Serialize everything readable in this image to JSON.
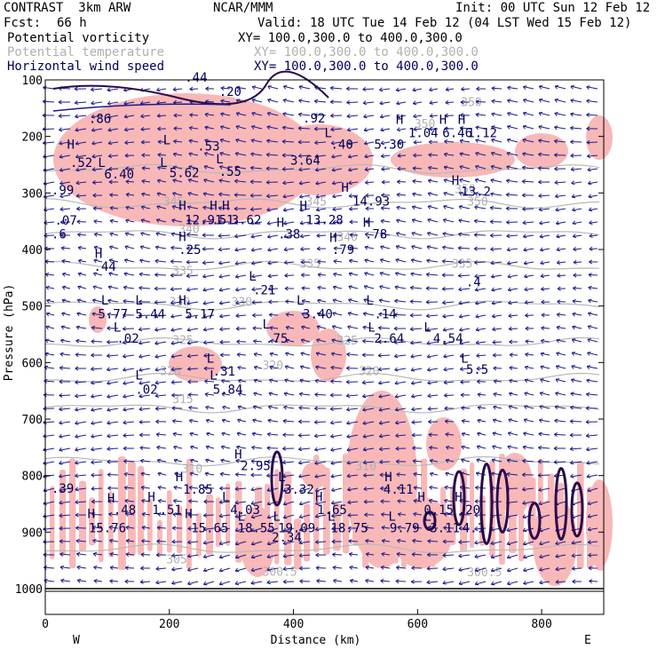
{
  "header": {
    "title_left": "CONTRAST  3km ARW",
    "center_label": "NCAR/MMM",
    "init": "Init: 00 UTC Sun 12 Feb 12",
    "fcst_label": "Fcst:",
    "fcst_value": "66 h",
    "valid": "Valid: 18 UTC Tue 14 Feb 12 (04 LST Wed 15 Feb 12)",
    "fields": [
      {
        "name": "Potential vorticity",
        "xy": "XY= 100.0,300.0 to 400.0,300.0",
        "color": "#000000"
      },
      {
        "name": "Potential temperature",
        "xy": "XY= 100.0,300.0 to 400.0,300.0",
        "color": "#b0b0b0"
      },
      {
        "name": "Horizontal wind speed",
        "xy": "XY= 100.0,300.0 to 400.0,300.0",
        "color": "#00005a"
      }
    ]
  },
  "chart_data": {
    "type": "cross-section",
    "xlabel": "Distance (km)",
    "ylabel": "Pressure (hPa)",
    "xlim": [
      0,
      900
    ],
    "ylim": [
      1000,
      100
    ],
    "x_ticks": [
      0,
      200,
      400,
      600,
      800
    ],
    "y_ticks": [
      100,
      200,
      300,
      400,
      500,
      600,
      700,
      800,
      900,
      1000
    ],
    "x_end_labels": {
      "left": "W",
      "right": "E"
    },
    "theta_isentropes": [
      {
        "label": "315",
        "pressure": 680
      },
      {
        "label": "320",
        "pressure": 628
      },
      {
        "label": "325",
        "pressure": 565
      },
      {
        "label": "330",
        "pressure": 498
      },
      {
        "label": "335",
        "pressure": 430
      },
      {
        "label": "340",
        "pressure": 372
      },
      {
        "label": "345",
        "pressure": 318
      },
      {
        "label": "350",
        "pressure": 258
      },
      {
        "label": "310",
        "pressure": 775
      },
      {
        "label": "305",
        "pressure": 930
      }
    ],
    "theta_labels": [
      {
        "text": "315",
        "x": 205,
        "p": 672
      },
      {
        "text": "320",
        "x": 185,
        "p": 622
      },
      {
        "text": "320",
        "x": 350,
        "p": 612
      },
      {
        "text": "320",
        "x": 505,
        "p": 622
      },
      {
        "text": "325",
        "x": 205,
        "p": 567
      },
      {
        "text": "325",
        "x": 470,
        "p": 568
      },
      {
        "text": "330",
        "x": 200,
        "p": 500
      },
      {
        "text": "330",
        "x": 300,
        "p": 500
      },
      {
        "text": "335",
        "x": 205,
        "p": 445
      },
      {
        "text": "335",
        "x": 410,
        "p": 432
      },
      {
        "text": "335",
        "x": 655,
        "p": 432
      },
      {
        "text": "340",
        "x": 215,
        "p": 371
      },
      {
        "text": "340",
        "x": 470,
        "p": 385
      },
      {
        "text": "345",
        "x": 420,
        "p": 322
      },
      {
        "text": "345",
        "x": 190,
        "p": 322
      },
      {
        "text": "350",
        "x": 680,
        "p": 322
      },
      {
        "text": "350",
        "x": 660,
        "p": 300
      },
      {
        "text": "350",
        "x": 595,
        "p": 185
      },
      {
        "text": "350",
        "x": 670,
        "p": 146
      },
      {
        "text": "310",
        "x": 220,
        "p": 795
      },
      {
        "text": "310",
        "x": 500,
        "p": 790
      },
      {
        "text": "305",
        "x": 195,
        "p": 955
      },
      {
        "text": "300.5",
        "x": 350,
        "p": 977
      },
      {
        "text": "300.5",
        "x": 680,
        "p": 978
      }
    ],
    "hl_labels": [
      {
        "t": "H",
        "x": 35,
        "p": 222
      },
      {
        "t": ".52",
        "x": 40,
        "p": 254
      },
      {
        "t": "L",
        "x": 85,
        "p": 254
      },
      {
        "t": "6.40",
        "x": 95,
        "p": 274
      },
      {
        "t": "L",
        "x": 190,
        "p": 214
      },
      {
        "t": ".53",
        "x": 245,
        "p": 225
      },
      {
        "t": "L",
        "x": 185,
        "p": 254
      },
      {
        "t": "5.62",
        "x": 200,
        "p": 272
      },
      {
        "t": "L",
        "x": 275,
        "p": 248
      },
      {
        "t": ".55",
        "x": 280,
        "p": 270
      },
      {
        "t": "3.64",
        "x": 395,
        "p": 250
      },
      {
        "t": ".92",
        "x": 415,
        "p": 175
      },
      {
        "t": ".86",
        "x": 70,
        "p": 176
      },
      {
        "t": ".20",
        "x": 280,
        "p": 128
      },
      {
        "t": ".44",
        "x": 225,
        "p": 103
      },
      {
        "t": "L",
        "x": 450,
        "p": 201
      },
      {
        "t": ".40",
        "x": 460,
        "p": 222
      },
      {
        "t": "5.30",
        "x": 530,
        "p": 222
      },
      {
        "t": "H",
        "x": 565,
        "p": 178
      },
      {
        "t": "1.04",
        "x": 585,
        "p": 201
      },
      {
        "t": "H",
        "x": 635,
        "p": 178
      },
      {
        "t": "6.46",
        "x": 640,
        "p": 201
      },
      {
        "t": "H",
        "x": 665,
        "p": 178
      },
      {
        "t": "1.12",
        "x": 680,
        "p": 201
      },
      {
        "t": "H",
        "x": 655,
        "p": 285
      },
      {
        "t": "13.2",
        "x": 670,
        "p": 305
      },
      {
        "t": ".99",
        "x": 10,
        "p": 303
      },
      {
        "t": "H",
        "x": 477,
        "p": 298
      },
      {
        "t": "14.93",
        "x": 495,
        "p": 322
      },
      {
        "t": ".07",
        "x": 15,
        "p": 356
      },
      {
        "t": "H",
        "x": 215,
        "p": 330
      },
      {
        "t": "12.91",
        "x": 225,
        "p": 355
      },
      {
        "t": "H",
        "x": 265,
        "p": 330
      },
      {
        "t": ".51",
        "x": 268,
        "p": 355
      },
      {
        "t": "H",
        "x": 285,
        "p": 330
      },
      {
        "t": "3.62",
        "x": 300,
        "p": 355
      },
      {
        "t": "H",
        "x": 410,
        "p": 330
      },
      {
        "t": "13.28",
        "x": 420,
        "p": 355
      },
      {
        "t": "H",
        "x": 373,
        "p": 360
      },
      {
        "t": ".38",
        "x": 375,
        "p": 380
      },
      {
        "t": "H",
        "x": 512,
        "p": 360
      },
      {
        "t": ".78",
        "x": 515,
        "p": 380
      },
      {
        "t": ".6",
        "x": 10,
        "p": 380
      },
      {
        "t": "H",
        "x": 458,
        "p": 387
      },
      {
        "t": ".79",
        "x": 462,
        "p": 408
      },
      {
        "t": "H",
        "x": 215,
        "p": 385
      },
      {
        "t": ".25",
        "x": 215,
        "p": 408
      },
      {
        "t": "H",
        "x": 80,
        "p": 415
      },
      {
        "t": ".44",
        "x": 78,
        "p": 438
      },
      {
        "t": "L",
        "x": 328,
        "p": 455
      },
      {
        "t": ".21",
        "x": 335,
        "p": 479
      },
      {
        "t": "H",
        "x": 215,
        "p": 497
      },
      {
        "t": "5.17",
        "x": 225,
        "p": 522
      },
      {
        "t": "L",
        "x": 90,
        "p": 497
      },
      {
        "t": "5.77",
        "x": 85,
        "p": 522
      },
      {
        "t": "L",
        "x": 145,
        "p": 497
      },
      {
        "t": "5.44",
        "x": 145,
        "p": 522
      },
      {
        "t": "L",
        "x": 405,
        "p": 497
      },
      {
        "t": "3.40",
        "x": 415,
        "p": 522
      },
      {
        "t": "L",
        "x": 517,
        "p": 497
      },
      {
        "t": ".14",
        "x": 530,
        "p": 522
      },
      {
        "t": "L",
        "x": 350,
        "p": 540
      },
      {
        "t": ".75",
        "x": 355,
        "p": 565
      },
      {
        "t": "L",
        "x": 110,
        "p": 545
      },
      {
        "t": ".02",
        "x": 115,
        "p": 565
      },
      {
        "t": "L",
        "x": 520,
        "p": 545
      },
      {
        "t": "2.64",
        "x": 530,
        "p": 565
      },
      {
        "t": "L",
        "x": 610,
        "p": 545
      },
      {
        "t": "4.54",
        "x": 625,
        "p": 565
      },
      {
        "t": "L",
        "x": 260,
        "p": 600
      },
      {
        "t": ".31",
        "x": 270,
        "p": 623
      },
      {
        "t": "L",
        "x": 145,
        "p": 630
      },
      {
        "t": ".02",
        "x": 145,
        "p": 655
      },
      {
        "t": "L",
        "x": 265,
        "p": 630
      },
      {
        "t": "5.84",
        "x": 270,
        "p": 655
      },
      {
        "t": "L",
        "x": 670,
        "p": 600
      },
      {
        "t": "5.5",
        "x": 678,
        "p": 620
      },
      {
        "t": ".4",
        "x": 678,
        "p": 465
      },
      {
        "t": "H",
        "x": 305,
        "p": 770
      },
      {
        "t": "2.95",
        "x": 315,
        "p": 790
      },
      {
        "t": "H",
        "x": 210,
        "p": 810
      },
      {
        "t": "1.85",
        "x": 222,
        "p": 832
      },
      {
        "t": "L",
        "x": 375,
        "p": 810
      },
      {
        "t": "3.32",
        "x": 385,
        "p": 832
      },
      {
        "t": "L",
        "x": 285,
        "p": 845
      },
      {
        "t": "4.03",
        "x": 298,
        "p": 868
      },
      {
        "t": "H",
        "x": 547,
        "p": 810
      },
      {
        "t": "4.11",
        "x": 545,
        "p": 832
      },
      {
        "t": ".39",
        "x": 10,
        "p": 830
      },
      {
        "t": "H",
        "x": 100,
        "p": 848
      },
      {
        "t": ".48",
        "x": 110,
        "p": 868
      },
      {
        "t": "H",
        "x": 165,
        "p": 845
      },
      {
        "t": "1.51",
        "x": 172,
        "p": 868
      },
      {
        "t": "H",
        "x": 435,
        "p": 845
      },
      {
        "t": "1.65",
        "x": 438,
        "p": 868
      },
      {
        "t": "H",
        "x": 600,
        "p": 845
      },
      {
        "t": "0.15",
        "x": 610,
        "p": 868
      },
      {
        "t": "H",
        "x": 660,
        "p": 845
      },
      {
        "t": ".20",
        "x": 665,
        "p": 868
      },
      {
        "t": "H",
        "x": 68,
        "p": 875
      },
      {
        "t": "15.76",
        "x": 70,
        "p": 900
      },
      {
        "t": "H",
        "x": 225,
        "p": 875
      },
      {
        "t": "15.65",
        "x": 235,
        "p": 900
      },
      {
        "t": "L",
        "x": 310,
        "p": 880
      },
      {
        "t": "18.55",
        "x": 310,
        "p": 900
      },
      {
        "t": "L",
        "x": 367,
        "p": 880
      },
      {
        "t": "19.09",
        "x": 375,
        "p": 900
      },
      {
        "t": "L",
        "x": 455,
        "p": 880
      },
      {
        "t": "18.75",
        "x": 460,
        "p": 900
      },
      {
        "t": "L",
        "x": 553,
        "p": 880
      },
      {
        "t": "9.79",
        "x": 555,
        "p": 900
      },
      {
        "t": "L",
        "x": 610,
        "p": 880
      },
      {
        "t": "3.11",
        "x": 620,
        "p": 900
      },
      {
        "t": "4.1",
        "x": 672,
        "p": 900
      },
      {
        "t": "2.34",
        "x": 365,
        "p": 917
      }
    ]
  }
}
